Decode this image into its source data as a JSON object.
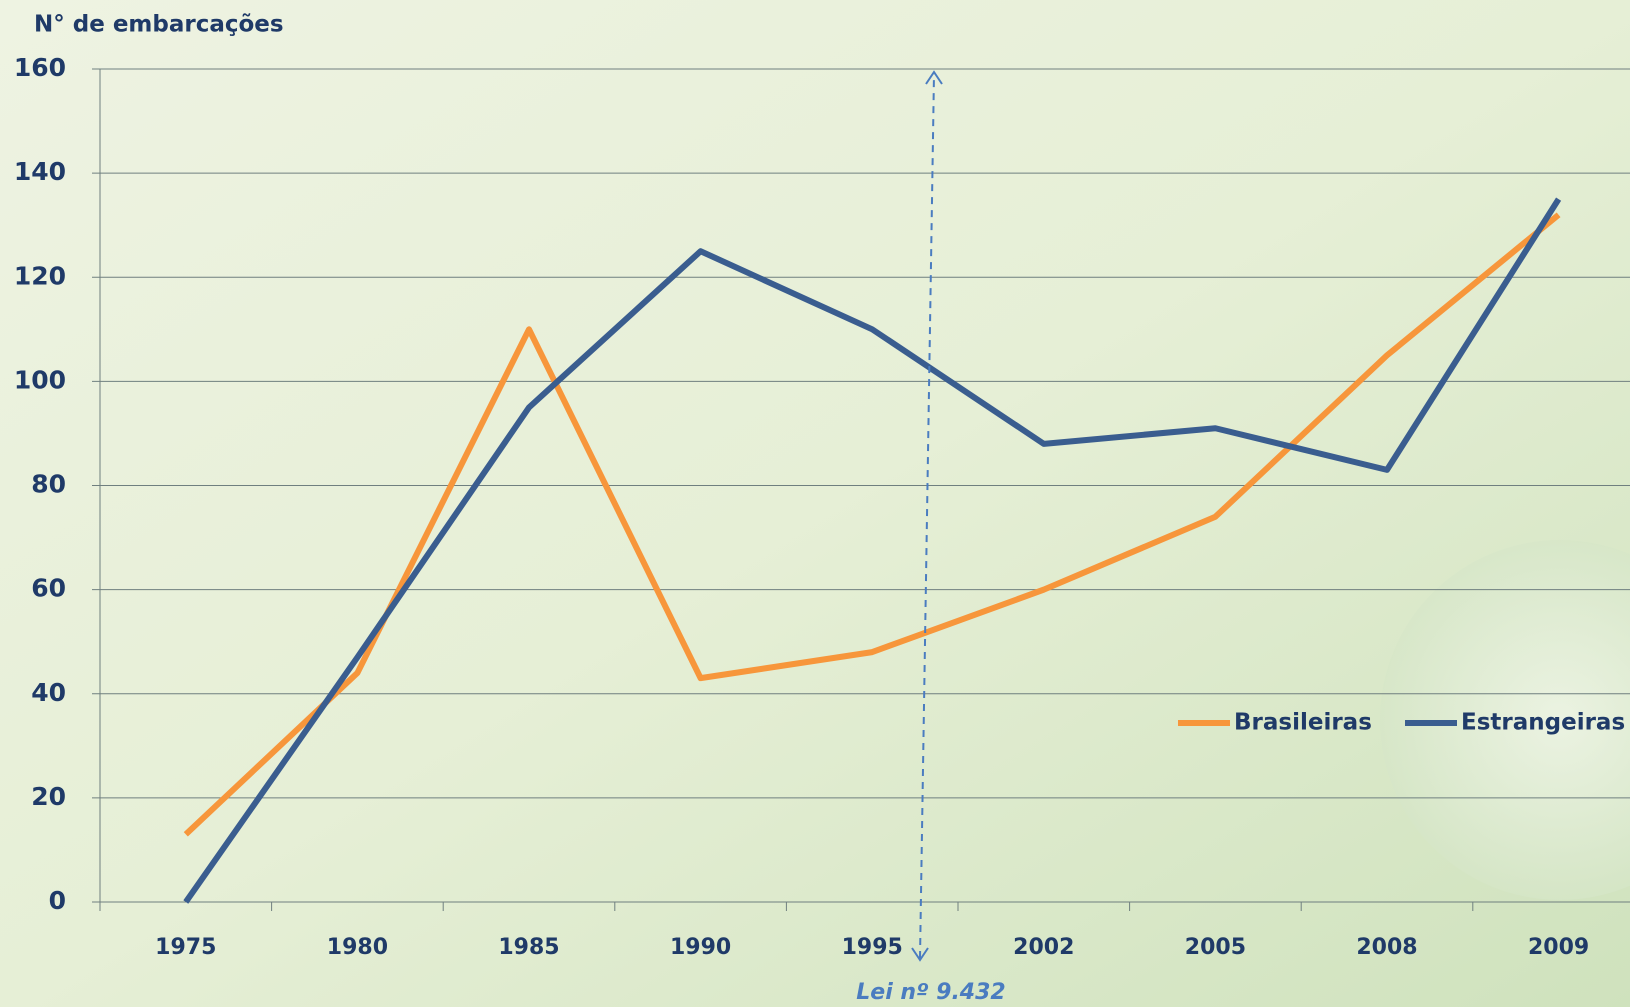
{
  "chart_data": {
    "type": "line",
    "y_label": "N° de embarcações",
    "categories": [
      "1975",
      "1980",
      "1985",
      "1990",
      "1995",
      "2002",
      "2005",
      "2008",
      "2009"
    ],
    "series": [
      {
        "name": "Brasileiras",
        "color": "#f7963b",
        "values": [
          13,
          44,
          110,
          43,
          48,
          60,
          74,
          105,
          132
        ]
      },
      {
        "name": "Estrangeiras",
        "color": "#3a5d8f",
        "values": [
          0,
          47,
          95,
          125,
          110,
          88,
          91,
          83,
          135
        ]
      }
    ],
    "ylim": [
      0,
      160
    ],
    "yticks": [
      0,
      20,
      40,
      60,
      80,
      100,
      120,
      140,
      160
    ],
    "grid": true,
    "annotation": "Lei nº 9.432",
    "legend": "lower-right"
  }
}
